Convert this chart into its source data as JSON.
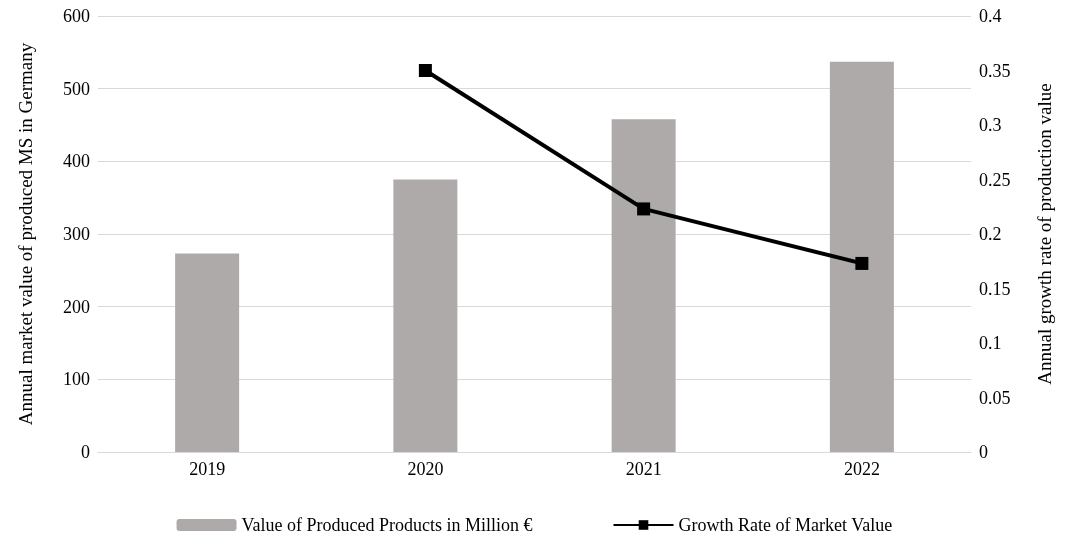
{
  "chart_data": {
    "type": "bar",
    "categories": [
      "2019",
      "2020",
      "2021",
      "2022"
    ],
    "ylabel": "Annual market value of produced MS in Germany",
    "y2label": "Annual growth rate of production value",
    "series": [
      {
        "name": "Value of Produced Products in Million €",
        "color": "#aeaaaa",
        "values": [
          273,
          375,
          458,
          537
        ]
      },
      {
        "name": "Growth Rate of Market Value",
        "type": "line",
        "axis": "y2",
        "color": "#000000",
        "marker": "square",
        "values": [
          null,
          0.35,
          0.223,
          0.173
        ]
      }
    ],
    "ylim": [
      0,
      600
    ],
    "yticks": [
      0,
      100,
      200,
      300,
      400,
      500,
      600
    ],
    "y2lim": [
      0,
      0.4
    ],
    "y2ticks": [
      0,
      0.05,
      0.1,
      0.15,
      0.2,
      0.25,
      0.3,
      0.35,
      0.4
    ],
    "grid": "y",
    "legend": "bottom"
  }
}
